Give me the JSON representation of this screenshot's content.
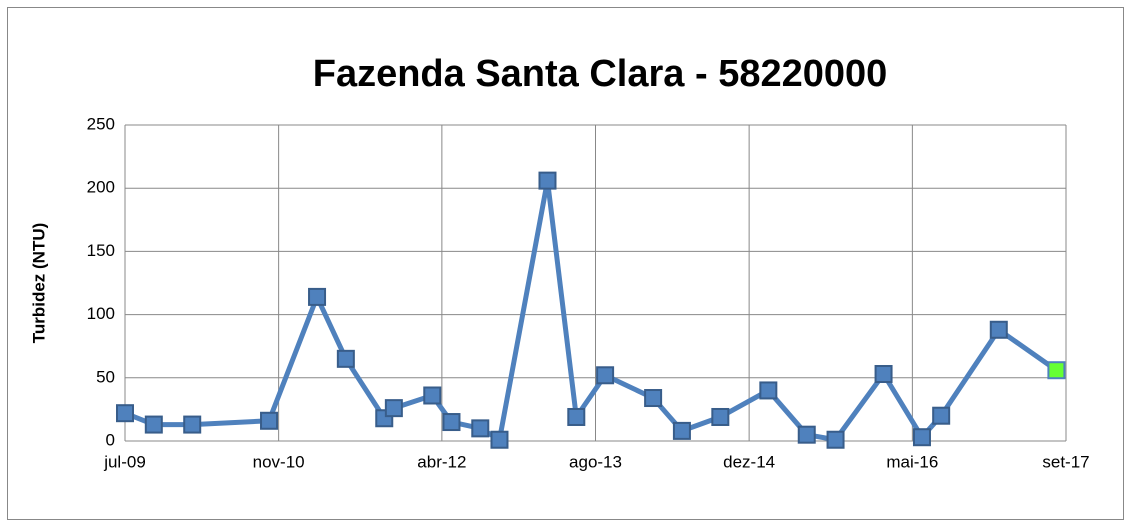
{
  "chart_data": {
    "type": "line",
    "title": "Fazenda Santa Clara - 58220000",
    "y_label": "Turbidez (NTU)",
    "x": [
      "2009-07",
      "2009-10",
      "2010-02",
      "2010-10",
      "2011-03",
      "2011-06",
      "2011-10",
      "2011-11",
      "2012-03",
      "2012-05",
      "2012-08",
      "2012-10",
      "2013-03",
      "2013-06",
      "2013-09",
      "2014-02",
      "2014-05",
      "2014-09",
      "2015-02",
      "2015-06",
      "2015-09",
      "2016-02",
      "2016-06",
      "2016-08",
      "2017-02",
      "2017-08"
    ],
    "series": [
      {
        "name": "Turbidez",
        "color": "#4f81bd",
        "last_point_color": "#66ff33",
        "values": [
          22,
          13,
          13,
          16,
          114,
          65,
          18,
          26,
          36,
          15,
          10,
          1,
          206,
          19,
          52,
          34,
          8,
          19,
          40,
          5,
          1,
          53,
          3,
          20,
          88,
          56
        ]
      }
    ],
    "xlim": [
      "2009-07",
      "2017-09"
    ],
    "xticks": [
      {
        "value": "2009-07",
        "label": "jul-09"
      },
      {
        "value": "2010-11",
        "label": "nov-10"
      },
      {
        "value": "2012-04",
        "label": "abr-12"
      },
      {
        "value": "2013-08",
        "label": "ago-13"
      },
      {
        "value": "2014-12",
        "label": "dez-14"
      },
      {
        "value": "2016-05",
        "label": "mai-16"
      },
      {
        "value": "2017-09",
        "label": "set-17"
      }
    ],
    "ylim": [
      0,
      250
    ],
    "yticks": [
      0,
      50,
      100,
      150,
      200,
      250
    ],
    "grid": true
  }
}
